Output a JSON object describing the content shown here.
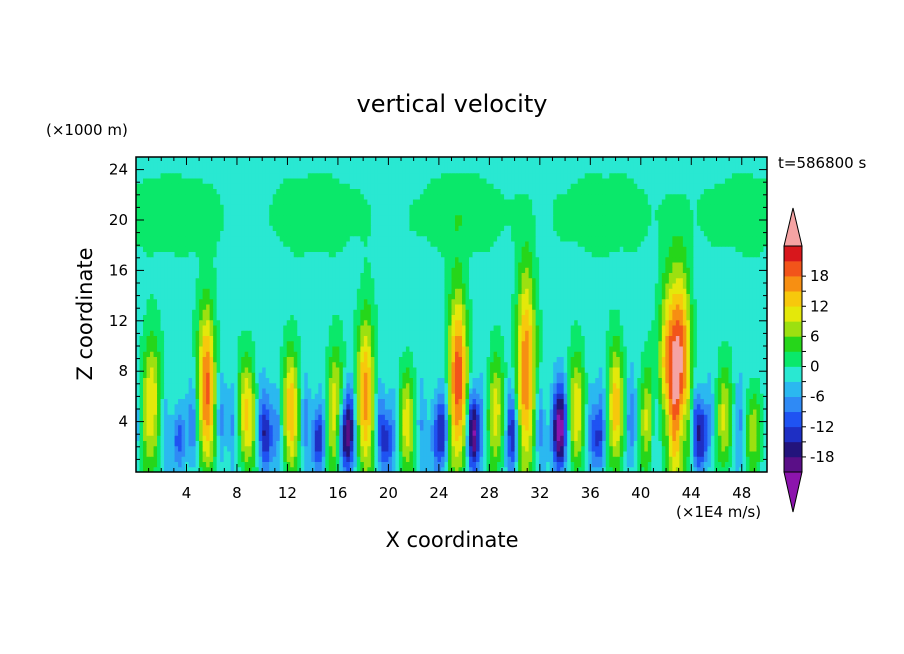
{
  "chart_data": {
    "type": "heatmap",
    "title": "vertical velocity",
    "xlabel": "X coordinate",
    "ylabel": "Z coordinate",
    "x_units": "(×1E4 m/s)",
    "y_units": "(×1000 m)",
    "time_label": "t=586800 s",
    "xlim": [
      0,
      50
    ],
    "ylim": [
      0,
      25
    ],
    "x_ticks": [
      4,
      8,
      12,
      16,
      20,
      24,
      28,
      32,
      36,
      40,
      44,
      48
    ],
    "y_ticks": [
      4,
      8,
      12,
      16,
      20,
      24
    ],
    "colorbar": {
      "levels": [
        -21,
        -18,
        -15,
        -12,
        -9,
        -6,
        -3,
        0,
        3,
        6,
        9,
        12,
        15,
        18,
        21
      ],
      "labels": [
        -18,
        -12,
        -6,
        0,
        6,
        12,
        18
      ],
      "colors": [
        "#5a0f87",
        "#23147c",
        "#1e2fc4",
        "#1f53f2",
        "#2f8af5",
        "#2bb8f0",
        "#29e8d2",
        "#0ae86a",
        "#26d61a",
        "#9ce010",
        "#e4e80a",
        "#f7c80c",
        "#f78f12",
        "#f2541a",
        "#d8171c"
      ],
      "under_color": "#8c14ad",
      "over_color": "#f5a3a3"
    },
    "grid": false,
    "plumes": [
      {
        "x": 1.2,
        "a": 14,
        "h": 13,
        "w": 0.55
      },
      {
        "x": 3.4,
        "a": -10,
        "h": 6,
        "w": 0.4
      },
      {
        "x": 5.6,
        "a": 20,
        "h": 16,
        "w": 0.5
      },
      {
        "x": 8.8,
        "a": 14,
        "h": 11,
        "w": 0.5
      },
      {
        "x": 10.3,
        "a": -12,
        "h": 7,
        "w": 0.35
      },
      {
        "x": 12.3,
        "a": 16,
        "h": 12,
        "w": 0.45
      },
      {
        "x": 14.4,
        "a": -10,
        "h": 6,
        "w": 0.35
      },
      {
        "x": 15.8,
        "a": 14,
        "h": 12,
        "w": 0.45
      },
      {
        "x": 16.5,
        "a": -16,
        "h": 7,
        "w": 0.4
      },
      {
        "x": 18.2,
        "a": 18,
        "h": 15,
        "w": 0.5
      },
      {
        "x": 19.8,
        "a": -10,
        "h": 6,
        "w": 0.35
      },
      {
        "x": 21.5,
        "a": 12,
        "h": 10,
        "w": 0.45
      },
      {
        "x": 24.0,
        "a": -12,
        "h": 7,
        "w": 0.4
      },
      {
        "x": 25.5,
        "a": 22,
        "h": 17,
        "w": 0.55
      },
      {
        "x": 26.8,
        "a": -16,
        "h": 7,
        "w": 0.35
      },
      {
        "x": 28.5,
        "a": 13,
        "h": 11,
        "w": 0.45
      },
      {
        "x": 30.0,
        "a": -8,
        "h": 6,
        "w": 0.35
      },
      {
        "x": 30.9,
        "a": 20,
        "h": 19,
        "w": 0.55
      },
      {
        "x": 33.5,
        "a": -20,
        "h": 8,
        "w": 0.4
      },
      {
        "x": 34.9,
        "a": 14,
        "h": 11,
        "w": 0.45
      },
      {
        "x": 36.5,
        "a": -10,
        "h": 6,
        "w": 0.35
      },
      {
        "x": 38.0,
        "a": 16,
        "h": 12,
        "w": 0.45
      },
      {
        "x": 40.5,
        "a": 12,
        "h": 10,
        "w": 0.45
      },
      {
        "x": 42.2,
        "a": 18,
        "h": 18,
        "w": 0.55
      },
      {
        "x": 43.2,
        "a": 21,
        "h": 19,
        "w": 0.55
      },
      {
        "x": 44.8,
        "a": -14,
        "h": 7,
        "w": 0.35
      },
      {
        "x": 46.6,
        "a": 12,
        "h": 10,
        "w": 0.45
      },
      {
        "x": 49.0,
        "a": 10,
        "h": 8,
        "w": 0.45
      }
    ]
  }
}
